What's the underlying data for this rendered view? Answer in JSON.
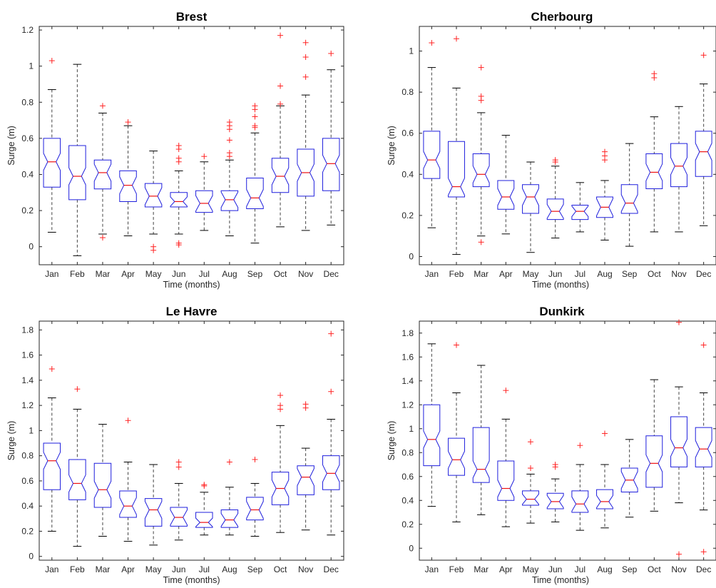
{
  "figure": {
    "month_labels": [
      "Jan",
      "Feb",
      "Mar",
      "Apr",
      "May",
      "Jun",
      "Jul",
      "Aug",
      "Sep",
      "Oct",
      "Nov",
      "Dec"
    ],
    "colors": {
      "box": "#1f1fdd",
      "median": "#ee1111",
      "outlier": "#ff2222",
      "whisker": "#444444",
      "axes": "#262626"
    }
  },
  "chart_data": [
    {
      "type": "boxplot",
      "title": "Brest",
      "xlabel": "Time (months)",
      "ylabel": "Surge (m)",
      "ylim": [
        -0.1,
        1.22
      ],
      "yticks": [
        0,
        0.2,
        0.4,
        0.6,
        0.8,
        1,
        1.2
      ],
      "ytick_labels": [
        "0",
        "0.2",
        "0.4",
        "0.6",
        "0.8",
        "1",
        "1.2"
      ],
      "categories": [
        "Jan",
        "Feb",
        "Mar",
        "Apr",
        "May",
        "Jun",
        "Jul",
        "Aug",
        "Sep",
        "Oct",
        "Nov",
        "Dec"
      ],
      "boxes": [
        {
          "low": 0.08,
          "q1": 0.33,
          "median": 0.47,
          "q3": 0.6,
          "high": 0.87,
          "outliers": [
            1.03
          ]
        },
        {
          "low": -0.05,
          "q1": 0.26,
          "median": 0.39,
          "q3": 0.56,
          "high": 1.01,
          "outliers": []
        },
        {
          "low": 0.07,
          "q1": 0.32,
          "median": 0.41,
          "q3": 0.48,
          "high": 0.74,
          "outliers": [
            0.78,
            0.05
          ]
        },
        {
          "low": 0.06,
          "q1": 0.25,
          "median": 0.34,
          "q3": 0.42,
          "high": 0.67,
          "outliers": [
            0.69
          ]
        },
        {
          "low": 0.07,
          "q1": 0.22,
          "median": 0.28,
          "q3": 0.35,
          "high": 0.53,
          "outliers": [
            0.0,
            -0.02
          ]
        },
        {
          "low": 0.07,
          "q1": 0.22,
          "median": 0.25,
          "q3": 0.3,
          "high": 0.42,
          "outliers": [
            0.56,
            0.54,
            0.49,
            0.47,
            0.02,
            0.01
          ]
        },
        {
          "low": 0.09,
          "q1": 0.19,
          "median": 0.24,
          "q3": 0.31,
          "high": 0.47,
          "outliers": [
            0.5
          ]
        },
        {
          "low": 0.06,
          "q1": 0.2,
          "median": 0.26,
          "q3": 0.31,
          "high": 0.48,
          "outliers": [
            0.69,
            0.67,
            0.65,
            0.59,
            0.52,
            0.5
          ]
        },
        {
          "low": 0.02,
          "q1": 0.21,
          "median": 0.27,
          "q3": 0.38,
          "high": 0.63,
          "outliers": [
            0.78,
            0.76,
            0.72,
            0.67,
            0.66
          ]
        },
        {
          "low": 0.11,
          "q1": 0.3,
          "median": 0.39,
          "q3": 0.49,
          "high": 0.78,
          "outliers": [
            1.17,
            0.89,
            0.79
          ]
        },
        {
          "low": 0.09,
          "q1": 0.28,
          "median": 0.41,
          "q3": 0.54,
          "high": 0.84,
          "outliers": [
            1.13,
            1.05,
            0.94
          ]
        },
        {
          "low": 0.12,
          "q1": 0.31,
          "median": 0.46,
          "q3": 0.6,
          "high": 0.98,
          "outliers": [
            1.07
          ]
        }
      ]
    },
    {
      "type": "boxplot",
      "title": "Cherbourg",
      "xlabel": "Time (months)",
      "ylabel": "Surge (m)",
      "ylim": [
        -0.04,
        1.12
      ],
      "yticks": [
        0,
        0.2,
        0.4,
        0.6,
        0.8,
        1
      ],
      "ytick_labels": [
        "0",
        "0.2",
        "0.4",
        "0.6",
        "0.8",
        "1"
      ],
      "categories": [
        "Jan",
        "Feb",
        "Mar",
        "Apr",
        "May",
        "Jun",
        "Jul",
        "Aug",
        "Sep",
        "Oct",
        "Nov",
        "Dec"
      ],
      "boxes": [
        {
          "low": 0.14,
          "q1": 0.38,
          "median": 0.47,
          "q3": 0.61,
          "high": 0.92,
          "outliers": [
            1.04
          ]
        },
        {
          "low": 0.01,
          "q1": 0.29,
          "median": 0.34,
          "q3": 0.56,
          "high": 0.82,
          "outliers": [
            1.06
          ]
        },
        {
          "low": 0.1,
          "q1": 0.34,
          "median": 0.4,
          "q3": 0.5,
          "high": 0.7,
          "outliers": [
            0.92,
            0.78,
            0.76,
            0.07
          ]
        },
        {
          "low": 0.11,
          "q1": 0.23,
          "median": 0.29,
          "q3": 0.37,
          "high": 0.59,
          "outliers": []
        },
        {
          "low": 0.02,
          "q1": 0.21,
          "median": 0.29,
          "q3": 0.35,
          "high": 0.46,
          "outliers": []
        },
        {
          "low": 0.09,
          "q1": 0.18,
          "median": 0.22,
          "q3": 0.28,
          "high": 0.44,
          "outliers": [
            0.47,
            0.46
          ]
        },
        {
          "low": 0.12,
          "q1": 0.18,
          "median": 0.22,
          "q3": 0.25,
          "high": 0.36,
          "outliers": []
        },
        {
          "low": 0.08,
          "q1": 0.19,
          "median": 0.24,
          "q3": 0.29,
          "high": 0.37,
          "outliers": [
            0.51,
            0.49,
            0.47
          ]
        },
        {
          "low": 0.05,
          "q1": 0.21,
          "median": 0.26,
          "q3": 0.35,
          "high": 0.55,
          "outliers": []
        },
        {
          "low": 0.12,
          "q1": 0.33,
          "median": 0.41,
          "q3": 0.5,
          "high": 0.68,
          "outliers": [
            0.89,
            0.87
          ]
        },
        {
          "low": 0.12,
          "q1": 0.34,
          "median": 0.44,
          "q3": 0.55,
          "high": 0.73,
          "outliers": []
        },
        {
          "low": 0.15,
          "q1": 0.39,
          "median": 0.51,
          "q3": 0.61,
          "high": 0.84,
          "outliers": [
            0.98
          ]
        }
      ]
    },
    {
      "type": "boxplot",
      "title": "Le Havre",
      "xlabel": "Time (months)",
      "ylabel": "Surge (m)",
      "ylim": [
        -0.03,
        1.87
      ],
      "yticks": [
        0,
        0.2,
        0.4,
        0.6,
        0.8,
        1,
        1.2,
        1.4,
        1.6,
        1.8
      ],
      "ytick_labels": [
        "0",
        "0.2",
        "0.4",
        "0.6",
        "0.8",
        "1",
        "1.2",
        "1.4",
        "1.6",
        "1.8"
      ],
      "categories": [
        "Jan",
        "Feb",
        "Mar",
        "Apr",
        "May",
        "Jun",
        "Jul",
        "Aug",
        "Sep",
        "Oct",
        "Nov",
        "Dec"
      ],
      "boxes": [
        {
          "low": 0.2,
          "q1": 0.53,
          "median": 0.76,
          "q3": 0.9,
          "high": 1.26,
          "outliers": [
            1.49
          ]
        },
        {
          "low": 0.08,
          "q1": 0.45,
          "median": 0.58,
          "q3": 0.77,
          "high": 1.17,
          "outliers": [
            1.33
          ]
        },
        {
          "low": 0.16,
          "q1": 0.39,
          "median": 0.53,
          "q3": 0.74,
          "high": 1.05,
          "outliers": []
        },
        {
          "low": 0.12,
          "q1": 0.31,
          "median": 0.4,
          "q3": 0.52,
          "high": 0.75,
          "outliers": [
            1.08
          ]
        },
        {
          "low": 0.09,
          "q1": 0.24,
          "median": 0.37,
          "q3": 0.46,
          "high": 0.73,
          "outliers": []
        },
        {
          "low": 0.13,
          "q1": 0.24,
          "median": 0.31,
          "q3": 0.39,
          "high": 0.58,
          "outliers": [
            0.75,
            0.71
          ]
        },
        {
          "low": 0.17,
          "q1": 0.23,
          "median": 0.27,
          "q3": 0.35,
          "high": 0.51,
          "outliers": [
            0.57,
            0.56
          ]
        },
        {
          "low": 0.17,
          "q1": 0.23,
          "median": 0.29,
          "q3": 0.37,
          "high": 0.55,
          "outliers": [
            0.75
          ]
        },
        {
          "low": 0.16,
          "q1": 0.29,
          "median": 0.37,
          "q3": 0.47,
          "high": 0.58,
          "outliers": [
            0.77
          ]
        },
        {
          "low": 0.19,
          "q1": 0.41,
          "median": 0.54,
          "q3": 0.67,
          "high": 1.04,
          "outliers": [
            1.28,
            1.2,
            1.17
          ]
        },
        {
          "low": 0.21,
          "q1": 0.49,
          "median": 0.63,
          "q3": 0.72,
          "high": 0.86,
          "outliers": [
            1.21,
            1.18
          ]
        },
        {
          "low": 0.17,
          "q1": 0.53,
          "median": 0.66,
          "q3": 0.8,
          "high": 1.09,
          "outliers": [
            1.77,
            1.31
          ]
        }
      ]
    },
    {
      "type": "boxplot",
      "title": "Dunkirk",
      "xlabel": "Time (months)",
      "ylabel": "Surge (m)",
      "ylim": [
        -0.1,
        1.9
      ],
      "yticks": [
        0,
        0.2,
        0.4,
        0.6,
        0.8,
        1,
        1.2,
        1.4,
        1.6,
        1.8
      ],
      "ytick_labels": [
        "0",
        "0.2",
        "0.4",
        "0.6",
        "0.8",
        "1",
        "1.2",
        "1.4",
        "1.6",
        "1.8"
      ],
      "categories": [
        "Jan",
        "Feb",
        "Mar",
        "Apr",
        "May",
        "Jun",
        "Jul",
        "Aug",
        "Sep",
        "Oct",
        "Nov",
        "Dec"
      ],
      "boxes": [
        {
          "low": 0.35,
          "q1": 0.69,
          "median": 0.91,
          "q3": 1.2,
          "high": 1.71,
          "outliers": []
        },
        {
          "low": 0.22,
          "q1": 0.61,
          "median": 0.74,
          "q3": 0.92,
          "high": 1.3,
          "outliers": [
            1.7
          ]
        },
        {
          "low": 0.28,
          "q1": 0.55,
          "median": 0.66,
          "q3": 1.01,
          "high": 1.53,
          "outliers": []
        },
        {
          "low": 0.18,
          "q1": 0.4,
          "median": 0.5,
          "q3": 0.73,
          "high": 1.08,
          "outliers": [
            1.32
          ]
        },
        {
          "low": 0.21,
          "q1": 0.36,
          "median": 0.41,
          "q3": 0.48,
          "high": 0.62,
          "outliers": [
            0.89,
            0.67
          ]
        },
        {
          "low": 0.22,
          "q1": 0.33,
          "median": 0.39,
          "q3": 0.46,
          "high": 0.58,
          "outliers": [
            0.7,
            0.68
          ]
        },
        {
          "low": 0.15,
          "q1": 0.3,
          "median": 0.37,
          "q3": 0.48,
          "high": 0.7,
          "outliers": [
            0.86
          ]
        },
        {
          "low": 0.17,
          "q1": 0.33,
          "median": 0.39,
          "q3": 0.49,
          "high": 0.7,
          "outliers": [
            0.96
          ]
        },
        {
          "low": 0.26,
          "q1": 0.47,
          "median": 0.57,
          "q3": 0.67,
          "high": 0.91,
          "outliers": []
        },
        {
          "low": 0.31,
          "q1": 0.51,
          "median": 0.71,
          "q3": 0.94,
          "high": 1.41,
          "outliers": []
        },
        {
          "low": 0.38,
          "q1": 0.68,
          "median": 0.84,
          "q3": 1.1,
          "high": 1.35,
          "outliers": [
            1.89,
            -0.05
          ]
        },
        {
          "low": 0.32,
          "q1": 0.68,
          "median": 0.83,
          "q3": 1.01,
          "high": 1.3,
          "outliers": [
            1.7,
            -0.03
          ]
        }
      ]
    }
  ]
}
